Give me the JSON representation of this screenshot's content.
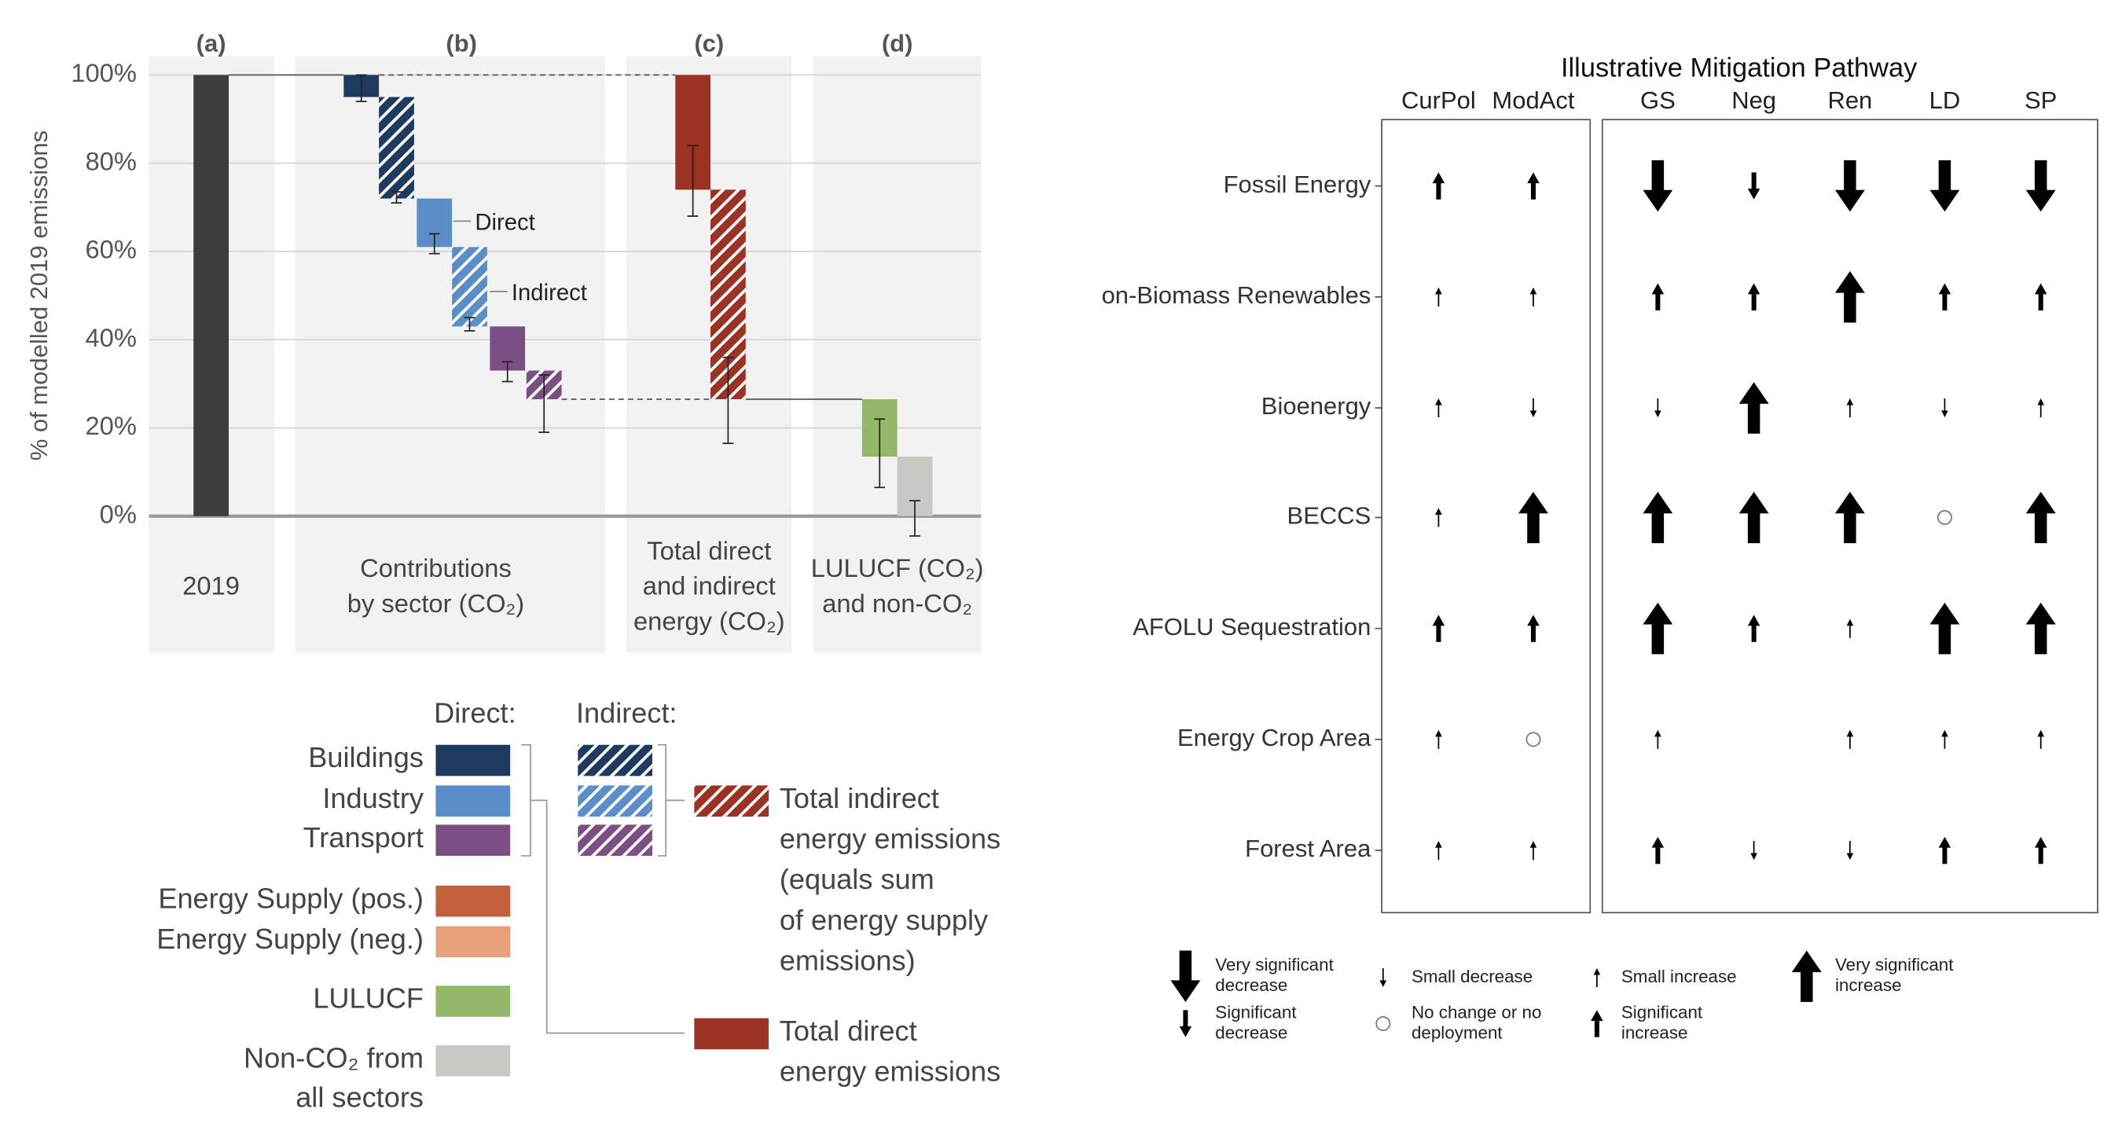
{
  "chart_data": [
    {
      "type": "waterfall",
      "panel_labels": [
        "(a)",
        "(b)",
        "(c)",
        "(d)"
      ],
      "group_labels": [
        [
          "2019"
        ],
        [
          "Contributions",
          "by sector (CO₂)"
        ],
        [
          "Total direct",
          "and indirect",
          "energy (CO₂)"
        ],
        [
          "LULUCF (CO₂)",
          "and non-CO₂"
        ]
      ],
      "y_label": "% of modelled 2019 emissions",
      "values": [
        100,
        -5,
        -23,
        -11,
        -18,
        -10,
        -6.5,
        -26,
        -47.5,
        -13,
        -13.5
      ],
      "errors": [
        null,
        [
          94,
          100
        ],
        [
          71,
          73.5
        ],
        [
          59.5,
          64
        ],
        [
          42,
          45
        ],
        [
          30.5,
          35
        ],
        [
          19,
          32
        ],
        [
          68,
          84
        ],
        [
          16.5,
          36
        ],
        [
          6.5,
          22
        ],
        [
          -4.5,
          3.5
        ]
      ],
      "colors": [
        "#3c3c3c",
        "#1f3a5f",
        "#1f3a5f",
        "#5b8ec9",
        "#5b8ec9",
        "#7b4f84",
        "#7b4f84",
        "#9a3324",
        "#9a3324",
        "#93b86a",
        "#c8c8c4"
      ],
      "hatched": [
        false,
        false,
        true,
        false,
        true,
        false,
        true,
        false,
        true,
        false,
        false
      ],
      "ylim": [
        0,
        100
      ],
      "yticks": [
        {
          "value": 0,
          "label": "0%"
        },
        {
          "value": 20,
          "label": "20%"
        },
        {
          "value": 40,
          "label": "40%"
        },
        {
          "value": 60,
          "label": "60%"
        },
        {
          "value": 80,
          "label": "80%"
        },
        {
          "value": 100,
          "label": "100%"
        }
      ],
      "grid": true,
      "annotations": [
        "Direct",
        "Indirect"
      ],
      "legend": {
        "direct_title": "Direct:",
        "indirect_title": "Indirect:",
        "items": [
          {
            "label": [
              "Buildings"
            ],
            "color": "#1f3a5f"
          },
          {
            "label": [
              "Industry"
            ],
            "color": "#5b8ec9"
          },
          {
            "label": [
              "Transport"
            ],
            "color": "#7b4f84"
          },
          {
            "label": [
              "Energy Supply (pos.)"
            ],
            "color": "#c4603b"
          },
          {
            "label": [
              "Energy Supply (neg.)"
            ],
            "color": "#e8a07a"
          },
          {
            "label": [
              "LULUCF"
            ],
            "color": "#93b86a"
          },
          {
            "label": [
              "Non-CO₂ from",
              "all sectors"
            ],
            "color": "#c8c8c4"
          },
          {
            "label": [
              "Total indirect",
              "energy emissions",
              "(equals sum",
              "of energy supply",
              "emissions)"
            ],
            "color": "#9a3324",
            "hatched": true
          },
          {
            "label": [
              "Total direct",
              "energy emissions"
            ],
            "color": "#9a3324"
          }
        ]
      }
    },
    {
      "type": "arrow-matrix",
      "title": "Illustrative Mitigation Pathway",
      "columns": [
        "CurPol",
        "ModAct",
        "GS",
        "Neg",
        "Ren",
        "LD",
        "SP"
      ],
      "rows": [
        "Fossil Energy",
        "on-Biomass Renewables",
        "Bioenergy",
        "BECCS",
        "AFOLU Sequestration",
        "Energy Crop Area",
        "Forest Area"
      ],
      "values": [
        [
          2,
          2,
          -3,
          -2,
          -3,
          -3,
          -3
        ],
        [
          1,
          1,
          2,
          2,
          3,
          2,
          2
        ],
        [
          1,
          -1,
          -1,
          3,
          1,
          -1,
          1
        ],
        [
          1,
          3,
          3,
          3,
          3,
          0,
          3
        ],
        [
          2,
          2,
          3,
          2,
          1,
          3,
          3
        ],
        [
          1,
          0,
          1,
          null,
          1,
          1,
          1
        ],
        [
          1,
          1,
          2,
          -1,
          -1,
          2,
          2
        ]
      ],
      "legend": [
        {
          "level": -3,
          "label": [
            "Very significant",
            "decrease"
          ]
        },
        {
          "level": -2,
          "label": [
            "Significant",
            "decrease"
          ]
        },
        {
          "level": -1,
          "label": [
            "Small decrease"
          ]
        },
        {
          "level": 0,
          "label": [
            "No change or no",
            "deployment"
          ]
        },
        {
          "level": 1,
          "label": [
            "Small increase"
          ]
        },
        {
          "level": 2,
          "label": [
            "Significant",
            "increase"
          ]
        },
        {
          "level": 3,
          "label": [
            "Very significant",
            "increase"
          ]
        }
      ]
    }
  ]
}
